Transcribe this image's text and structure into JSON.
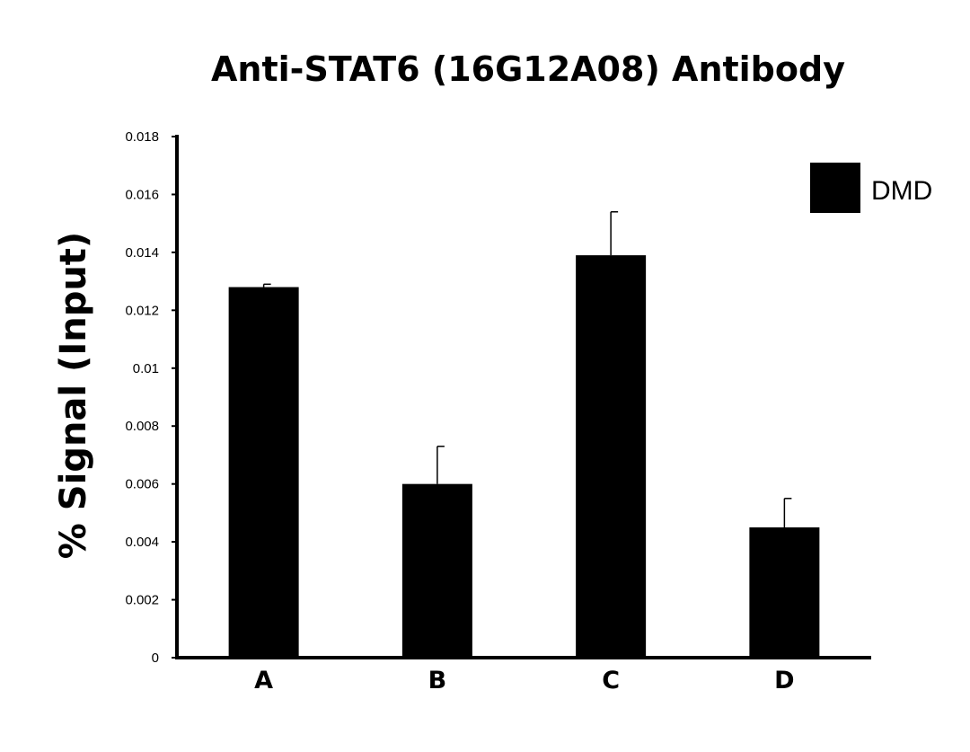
{
  "chart_data": {
    "type": "bar",
    "title": "Anti-STAT6 (16G12A08) Antibody",
    "ylabel": "% Signal (Input)",
    "xlabel": "",
    "categories": [
      "A",
      "B",
      "C",
      "D"
    ],
    "series": [
      {
        "name": "DMD",
        "values": [
          0.0128,
          0.006,
          0.0139,
          0.0045
        ],
        "errors": [
          0.0001,
          0.0013,
          0.0015,
          0.001
        ],
        "color": "#000000"
      }
    ],
    "ylim": [
      0,
      0.018
    ],
    "yticks": [
      "0",
      "0.002",
      "0.004",
      "0.006",
      "0.008",
      "0.01",
      "0.012",
      "0.014",
      "0.016",
      "0.018"
    ],
    "legend_position": "top-right",
    "grid": false
  }
}
